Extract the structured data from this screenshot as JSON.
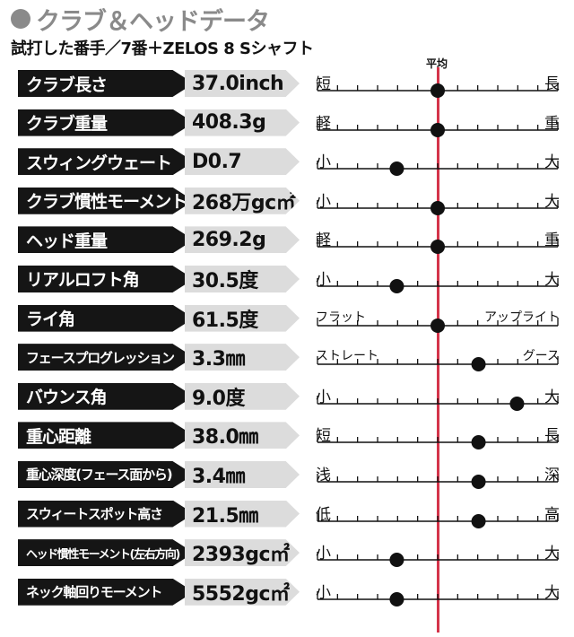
{
  "title": "クラブ＆ヘッドデータ",
  "subtitle": "試打した番手／7番＋ZELOS 8 Sシャフト",
  "average_label": "平均",
  "colors": {
    "title": "#8a8a8a",
    "label_bg": "#151515",
    "value_bg": "#dcdcdc",
    "average_line": "#d4344a"
  },
  "rows": [
    {
      "label": "クラブ長さ",
      "value": "37.0inch",
      "left": "短",
      "right": "長",
      "position": 0.5
    },
    {
      "label": "クラブ重量",
      "value": "408.3g",
      "left": "軽",
      "right": "重",
      "position": 0.5
    },
    {
      "label": "スウィングウェート",
      "value": "D0.7",
      "left": "小",
      "right": "大",
      "position": 0.33
    },
    {
      "label": "クラブ慣性モーメント",
      "value": "268万gc㎡",
      "left": "小",
      "right": "大",
      "position": 0.5
    },
    {
      "label": "ヘッド重量",
      "value": "269.2g",
      "left": "軽",
      "right": "重",
      "position": 0.5
    },
    {
      "label": "リアルロフト角",
      "value": "30.5度",
      "left": "小",
      "right": "大",
      "position": 0.33
    },
    {
      "label": "ライ角",
      "value": "61.5度",
      "left": "フラット",
      "right": "アップライト",
      "position": 0.5
    },
    {
      "label": "フェースプログレッション",
      "value": "3.3㎜",
      "left": "ストレート",
      "right": "グース",
      "position": 0.67
    },
    {
      "label": "バウンス角",
      "value": "9.0度",
      "left": "小",
      "right": "大",
      "position": 0.83
    },
    {
      "label": "重心距離",
      "value": "38.0㎜",
      "left": "短",
      "right": "長",
      "position": 0.67
    },
    {
      "label": "重心深度(フェース面から)",
      "value": "3.4㎜",
      "left": "浅",
      "right": "深",
      "position": 0.67
    },
    {
      "label": "スウィートスポット高さ",
      "value": "21.5㎜",
      "left": "低",
      "right": "高",
      "position": 0.67
    },
    {
      "label": "ヘッド慣性モーメント(左右方向)",
      "value": "2393gc㎡",
      "left": "小",
      "right": "大",
      "position": 0.33
    },
    {
      "label": "ネック軸回りモーメント",
      "value": "5552gc㎡",
      "left": "小",
      "right": "大",
      "position": 0.33
    }
  ]
}
